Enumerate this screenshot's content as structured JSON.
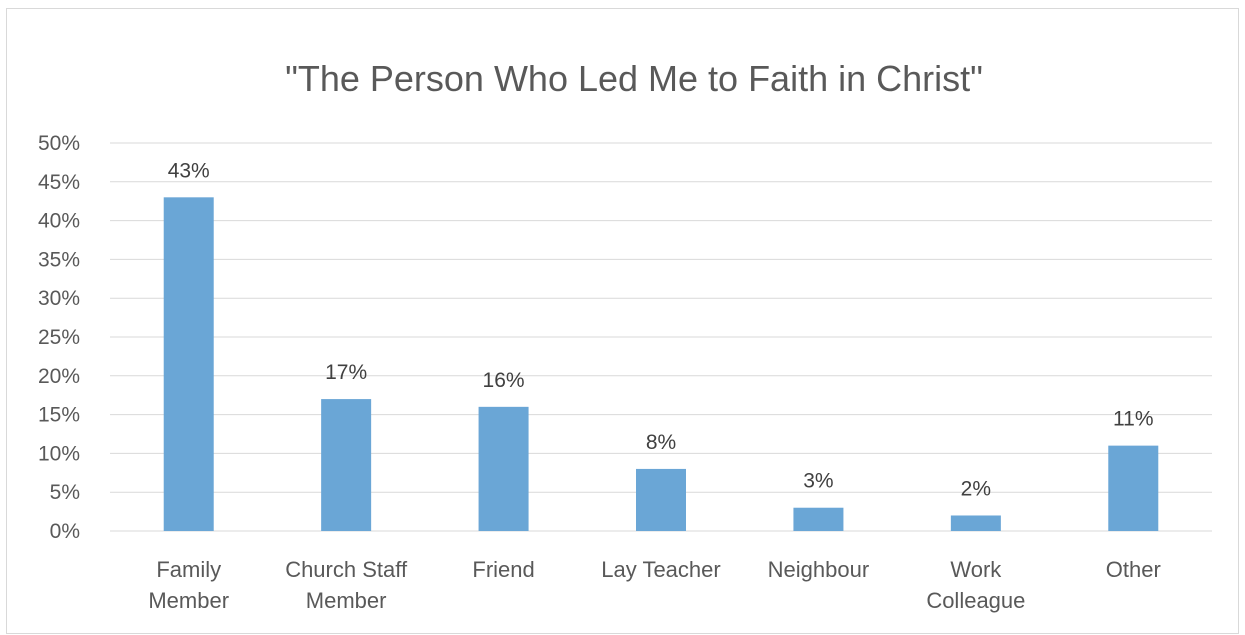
{
  "chart_data": {
    "type": "bar",
    "title": "\"The Person Who Led Me to Faith in Christ\"",
    "categories": [
      [
        "Family",
        "Member"
      ],
      [
        "Church Staff",
        "Member"
      ],
      [
        "Friend"
      ],
      [
        "Lay Teacher"
      ],
      [
        "Neighbour"
      ],
      [
        "Work",
        "Colleague"
      ],
      [
        "Other"
      ]
    ],
    "values": [
      43,
      17,
      16,
      8,
      3,
      2,
      11
    ],
    "data_labels": [
      "43%",
      "17%",
      "16%",
      "8%",
      "3%",
      "2%",
      "11%"
    ],
    "y_ticks": [
      0,
      5,
      10,
      15,
      20,
      25,
      30,
      35,
      40,
      45,
      50
    ],
    "y_tick_labels": [
      "0%",
      "5%",
      "10%",
      "15%",
      "20%",
      "25%",
      "30%",
      "35%",
      "40%",
      "45%",
      "50%"
    ],
    "ylim": [
      0,
      50
    ],
    "xlabel": "",
    "ylabel": "",
    "grid": true,
    "legend": "none",
    "bar_color": "#6aa6d6",
    "grid_color": "#d9d9d9"
  }
}
